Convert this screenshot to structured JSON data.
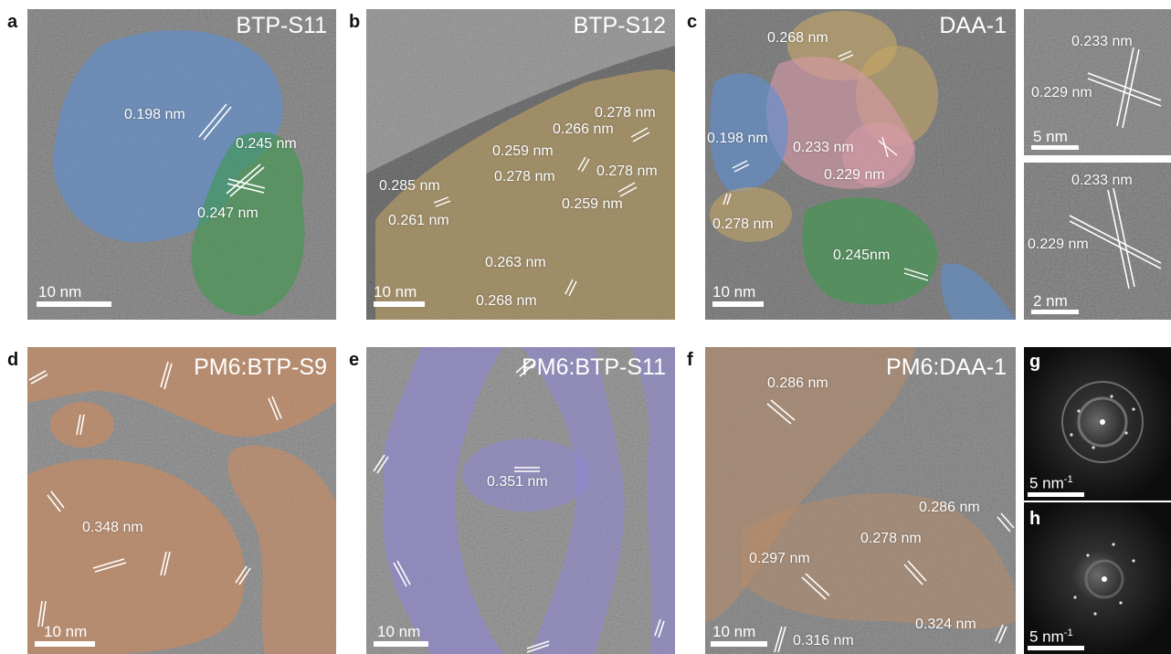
{
  "figure": {
    "colors": {
      "acceptor_blue": "#5b8fd6",
      "donor_green": "#3c9a4c",
      "crystal_gold": "#c8a865",
      "crystal_pink": "#d99aa8",
      "domain_orange": "#d08a5c",
      "domain_purple": "#8e86d6",
      "domain_tan": "#b98c68",
      "label_white": "#ffffff"
    },
    "panels": [
      {
        "letter": "a",
        "title": "BTP-S11",
        "scale_bar": "10 nm",
        "measurements": [
          "0.198 nm",
          "0.245 nm",
          "0.247 nm"
        ]
      },
      {
        "letter": "b",
        "title": "BTP-S12",
        "scale_bar": "10 nm",
        "measurements": [
          "0.278 nm",
          "0.266 nm",
          "0.259 nm",
          "0.278 nm",
          "0.278 nm",
          "0.285 nm",
          "0.259 nm",
          "0.261 nm",
          "0.263 nm",
          "0.268 nm"
        ]
      },
      {
        "letter": "c",
        "title": "DAA-1",
        "scale_bar": "10 nm",
        "measurements": [
          "0.268 nm",
          "0.198 nm",
          "0.233 nm",
          "0.229 nm",
          "0.278 nm",
          "0.245nm"
        ]
      },
      {
        "letter": "",
        "title": "",
        "scale_bar": "5 nm",
        "measurements": [
          "0.233 nm",
          "0.229 nm"
        ]
      },
      {
        "letter": "",
        "title": "",
        "scale_bar": "2 nm",
        "measurements": [
          "0.233 nm",
          "0.229 nm"
        ]
      },
      {
        "letter": "d",
        "title": "PM6:BTP-S9",
        "scale_bar": "10 nm",
        "measurements": [
          "0.348 nm"
        ]
      },
      {
        "letter": "e",
        "title": "PM6:BTP-S11",
        "scale_bar": "10 nm",
        "measurements": [
          "0.351 nm"
        ]
      },
      {
        "letter": "f",
        "title": "PM6:DAA-1",
        "scale_bar": "10 nm",
        "measurements": [
          "0.286 nm",
          "0.286 nm",
          "0.278 nm",
          "0.297 nm",
          "0.316 nm",
          "0.324 nm"
        ]
      },
      {
        "letter": "g",
        "title": "",
        "scale_bar": "5 nm",
        "measurements": []
      },
      {
        "letter": "h",
        "title": "",
        "scale_bar": "5 nm",
        "measurements": []
      }
    ]
  }
}
